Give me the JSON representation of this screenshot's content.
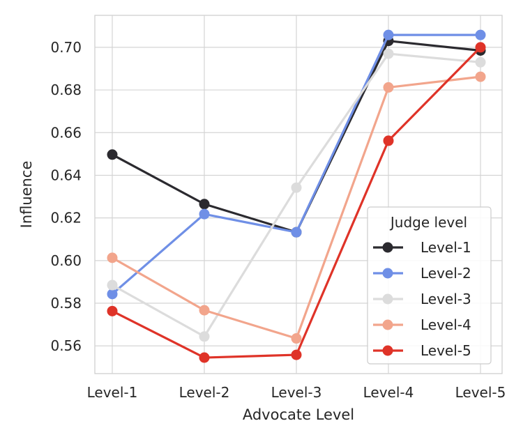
{
  "chart_data": {
    "type": "line",
    "xlabel": "Advocate Level",
    "ylabel": "Influence",
    "categories": [
      "Level-1",
      "Level-2",
      "Level-3",
      "Level-4",
      "Level-5"
    ],
    "ylim": [
      0.547,
      0.715
    ],
    "yticks": [
      "0.56",
      "0.58",
      "0.60",
      "0.62",
      "0.64",
      "0.66",
      "0.68",
      "0.70"
    ],
    "grid": true,
    "legend": {
      "title": "Judge level",
      "placement": "lower-right"
    },
    "series": [
      {
        "name": "Level-1",
        "color": "#2b2a2f",
        "values": [
          0.6497,
          0.6265,
          0.6133,
          0.703,
          0.6985
        ]
      },
      {
        "name": "Level-2",
        "color": "#6f8fe6",
        "values": [
          0.5843,
          0.6218,
          0.6133,
          0.7058,
          0.7058
        ]
      },
      {
        "name": "Level-3",
        "color": "#dcdcdc",
        "values": [
          0.5885,
          0.5644,
          0.6342,
          0.697,
          0.693
        ]
      },
      {
        "name": "Level-4",
        "color": "#f2a58c",
        "values": [
          0.6013,
          0.5767,
          0.5635,
          0.6812,
          0.6862
        ]
      },
      {
        "name": "Level-5",
        "color": "#df3328",
        "values": [
          0.5763,
          0.5545,
          0.5558,
          0.6562,
          0.7
        ]
      }
    ]
  }
}
